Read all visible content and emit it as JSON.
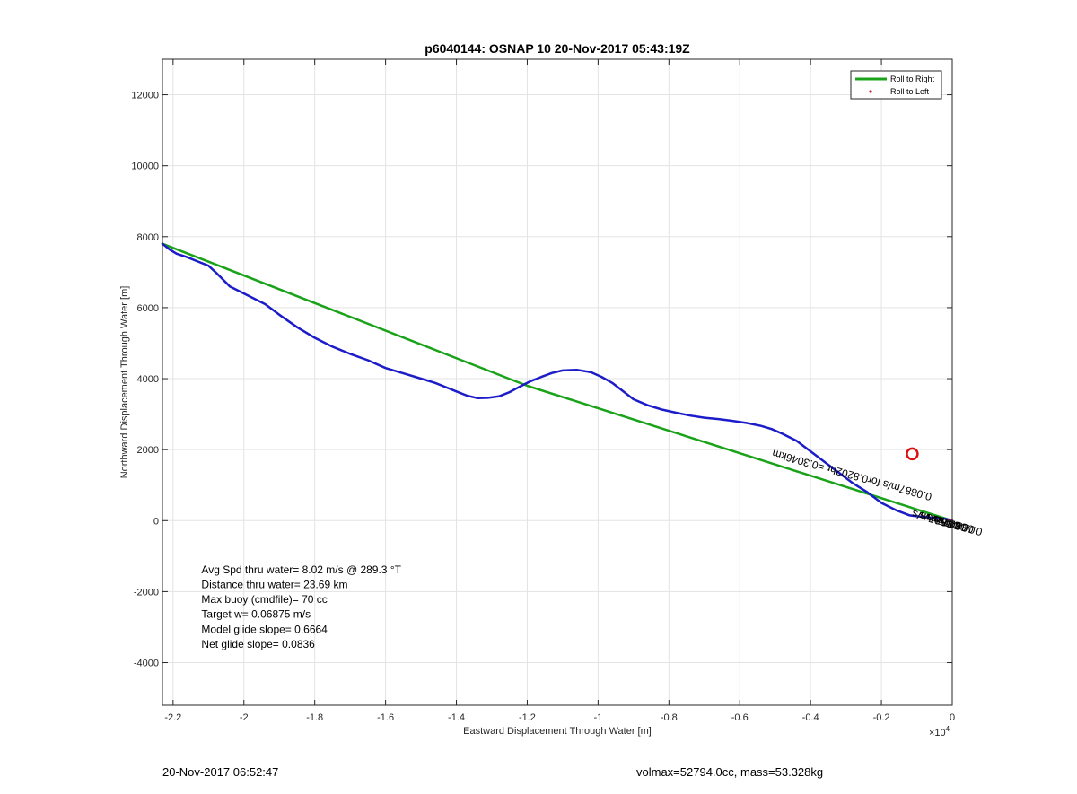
{
  "chart_data": {
    "type": "line",
    "title": "p6040144: OSNAP 10 20-Nov-2017 05:43:19Z",
    "xlabel": "Eastward Displacement Through Water [m]",
    "ylabel": "Northward Displacement Through Water [m]",
    "x_exponent_label": "×10",
    "x_exponent_power": "4",
    "xlim": [
      -2.23,
      0
    ],
    "ylim": [
      -5200,
      13000
    ],
    "x_ticks": [
      -2.2,
      -2,
      -1.8,
      -1.6,
      -1.4,
      -1.2,
      -1,
      -0.8,
      -0.6,
      -0.4,
      -0.2,
      0
    ],
    "x_tick_labels": [
      "-2.2",
      "-2",
      "-1.8",
      "-1.6",
      "-1.4",
      "-1.2",
      "-1",
      "-0.8",
      "-0.6",
      "-0.4",
      "-0.2",
      "0"
    ],
    "y_ticks": [
      -4000,
      -2000,
      0,
      2000,
      4000,
      6000,
      8000,
      10000,
      12000
    ],
    "y_tick_labels": [
      "-4000",
      "-2000",
      "0",
      "2000",
      "4000",
      "6000",
      "8000",
      "10000",
      "12000"
    ],
    "grid": true,
    "legend_position": "top-right",
    "legend": [
      {
        "label": "Roll to Right",
        "color": "#1aa31a",
        "marker": "line"
      },
      {
        "label": "Roll to Left",
        "color": "#e01818",
        "marker": "dot"
      }
    ],
    "series": [
      {
        "color": "#1aa31a",
        "style": "line",
        "x": [
          0,
          -1.2,
          -2.23
        ],
        "y": [
          0,
          3800,
          7800
        ]
      },
      {
        "color": "#1c1cc8",
        "style": "line",
        "x": [
          0,
          -0.02,
          -0.05,
          -0.08,
          -0.12,
          -0.16,
          -0.2,
          -0.24,
          -0.28,
          -0.32,
          -0.36,
          -0.4,
          -0.44,
          -0.48,
          -0.51,
          -0.54,
          -0.58,
          -0.62,
          -0.66,
          -0.7,
          -0.74,
          -0.78,
          -0.82,
          -0.86,
          -0.9,
          -0.93,
          -0.96,
          -0.99,
          -1.02,
          -1.06,
          -1.1,
          -1.13,
          -1.16,
          -1.19,
          -1.22,
          -1.25,
          -1.28,
          -1.31,
          -1.34,
          -1.37,
          -1.4,
          -1.43,
          -1.46,
          -1.5,
          -1.55,
          -1.6,
          -1.65,
          -1.7,
          -1.75,
          -1.8,
          -1.85,
          -1.9,
          -1.94,
          -1.98,
          -2.01,
          -2.04,
          -2.06,
          -2.08,
          -2.1,
          -2.13,
          -2.16,
          -2.19,
          -2.21,
          -2.23
        ],
        "y": [
          0,
          50,
          80,
          100,
          150,
          300,
          500,
          800,
          1050,
          1350,
          1650,
          1950,
          2250,
          2450,
          2580,
          2670,
          2750,
          2810,
          2860,
          2900,
          2960,
          3040,
          3130,
          3250,
          3420,
          3650,
          3880,
          4050,
          4180,
          4250,
          4230,
          4160,
          4050,
          3930,
          3780,
          3620,
          3500,
          3460,
          3450,
          3520,
          3640,
          3760,
          3880,
          4000,
          4150,
          4300,
          4520,
          4700,
          4900,
          5150,
          5450,
          5800,
          6100,
          6300,
          6450,
          6600,
          6800,
          7000,
          7180,
          7300,
          7420,
          7520,
          7640,
          7800
        ]
      }
    ],
    "current_marker": {
      "x": -0.113,
      "y": 1880,
      "color": "#dd1111"
    },
    "annotations": [
      {
        "text": "Avg Spd thru water=  8.02 m/s @ 289.3 °T",
        "x": -2.12,
        "y": -1480
      },
      {
        "text": "Distance thru water= 23.69 km",
        "x": -2.12,
        "y": -1900
      },
      {
        "text": "Max buoy (cmdfile)= 70 cc",
        "x": -2.12,
        "y": -2320
      },
      {
        "text": "Target w= 0.06875 m/s",
        "x": -2.12,
        "y": -2740
      },
      {
        "text": "Model glide slope= 0.6664",
        "x": -2.12,
        "y": -3160
      },
      {
        "text": "Net glide slope= 0.0836",
        "x": -2.12,
        "y": -3580
      }
    ],
    "rotated_text": {
      "text": "0.0887m/s for0.8202hr =0.3046km",
      "x": -0.505,
      "y": 2000,
      "angle": 15.5
    },
    "rotated_text_stack": [
      {
        "text": "0.0887m/s",
        "x": -0.11,
        "y": 300
      },
      {
        "text": "0.0887m/s",
        "x": -0.09,
        "y": 250
      },
      {
        "text": "0.0887m/s",
        "x": -0.07,
        "y": 200
      },
      {
        "text": "0.0887m/s",
        "x": -0.05,
        "y": 150
      }
    ]
  },
  "footer": {
    "left_timestamp": "20-Nov-2017 06:52:47",
    "right_text": "volmax=52794.0cc, mass=53.328kg"
  }
}
